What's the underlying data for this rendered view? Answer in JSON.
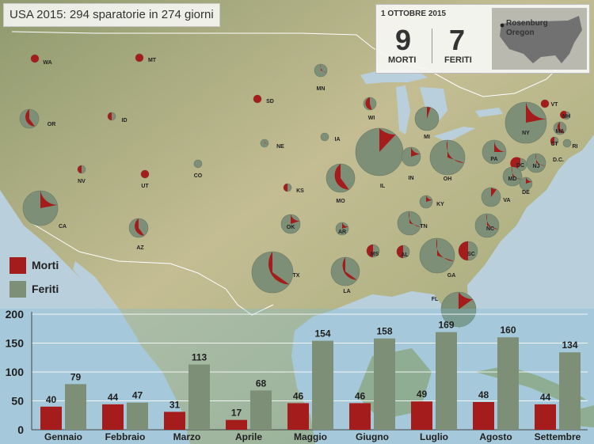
{
  "title": "USA 2015: 294 sparatorie in 274 giorni",
  "colors": {
    "morti": "#a51c1c",
    "feriti": "#7d8f76",
    "grid": "#ffffff",
    "sea": "#b9cfdc"
  },
  "info_box": {
    "date": "1 OTTOBRE 2015",
    "morti_value": "9",
    "morti_label": "MORTI",
    "feriti_value": "7",
    "feriti_label": "FERITI",
    "location_line1": "Rosenburg",
    "location_line2": "Oregon"
  },
  "legend": [
    {
      "label": "Morti",
      "color": "#a51c1c"
    },
    {
      "label": "Feriti",
      "color": "#7d8f76"
    }
  ],
  "map_states": [
    {
      "label": "WA",
      "size": 1,
      "dead_share": 1.0
    },
    {
      "label": "MT",
      "size": 1,
      "dead_share": 1.0
    },
    {
      "label": "OR",
      "size": 3,
      "dead_share": 0.4
    },
    {
      "label": "ID",
      "size": 1,
      "dead_share": 0.5
    },
    {
      "label": "SD",
      "size": 1,
      "dead_share": 1.0
    },
    {
      "label": "MN",
      "size": 2,
      "dead_share": 0.3
    },
    {
      "label": "WI",
      "size": 2,
      "dead_share": 0.45
    },
    {
      "label": "NV",
      "size": 1,
      "dead_share": 0.5
    },
    {
      "label": "UT",
      "size": 1,
      "dead_share": 1.0
    },
    {
      "label": "CO",
      "size": 1,
      "dead_share": 0.0
    },
    {
      "label": "NE",
      "size": 1,
      "dead_share": 0.3
    },
    {
      "label": "IA",
      "size": 1,
      "dead_share": 0.0
    },
    {
      "label": "CA",
      "size": 6,
      "dead_share": 0.22
    },
    {
      "label": "KS",
      "size": 1,
      "dead_share": 0.5
    },
    {
      "label": "MO",
      "size": 5,
      "dead_share": 0.4
    },
    {
      "label": "IL",
      "size": 8,
      "dead_share": 0.12
    },
    {
      "label": "IN",
      "size": 3,
      "dead_share": 0.2
    },
    {
      "label": "OH",
      "size": 6,
      "dead_share": 0.3
    },
    {
      "label": "MI",
      "size": 4,
      "dead_share": 0.05
    },
    {
      "label": "NY",
      "size": 7,
      "dead_share": 0.22
    },
    {
      "label": "PA",
      "size": 4,
      "dead_share": 0.25
    },
    {
      "label": "VT",
      "size": 1,
      "dead_share": 1.0
    },
    {
      "label": "NH",
      "size": 1,
      "dead_share": 0.6
    },
    {
      "label": "MA",
      "size": 2,
      "dead_share": 0.4
    },
    {
      "label": "CT",
      "size": 1,
      "dead_share": 0.5
    },
    {
      "label": "RI",
      "size": 1,
      "dead_share": 0.0
    },
    {
      "label": "NJ",
      "size": 3,
      "dead_share": 0.3
    },
    {
      "label": "DC",
      "size": 2,
      "dead_share": 0.6
    },
    {
      "label": "MD",
      "size": 3,
      "dead_share": 0.3
    },
    {
      "label": "DE",
      "size": 2,
      "dead_share": 0.2
    },
    {
      "label": "D.C.",
      "size": 0,
      "dead_share": 0.0
    },
    {
      "label": "VA",
      "size": 3,
      "dead_share": 0.1
    },
    {
      "label": "KY",
      "size": 2,
      "dead_share": 0.2
    },
    {
      "label": "OK",
      "size": 3,
      "dead_share": 0.2
    },
    {
      "label": "AR",
      "size": 2,
      "dead_share": 0.2
    },
    {
      "label": "TN",
      "size": 4,
      "dead_share": 0.3
    },
    {
      "label": "NC",
      "size": 4,
      "dead_share": 0.3
    },
    {
      "label": "SC",
      "size": 3,
      "dead_share": 0.5
    },
    {
      "label": "AZ",
      "size": 3,
      "dead_share": 0.4
    },
    {
      "label": "TX",
      "size": 7,
      "dead_share": 0.35
    },
    {
      "label": "LA",
      "size": 5,
      "dead_share": 0.35
    },
    {
      "label": "MS",
      "size": 2,
      "dead_share": 0.5
    },
    {
      "label": "AL",
      "size": 2,
      "dead_share": 0.5
    },
    {
      "label": "GA",
      "size": 6,
      "dead_share": 0.3
    },
    {
      "label": "FL",
      "size": 6,
      "dead_share": 0.15
    }
  ],
  "chart_data": {
    "type": "bar",
    "categories": [
      "Gennaio",
      "Febbraio",
      "Marzo",
      "Aprile",
      "Maggio",
      "Giugno",
      "Luglio",
      "Agosto",
      "Settembre"
    ],
    "series": [
      {
        "name": "Morti",
        "values": [
          40,
          44,
          31,
          17,
          46,
          46,
          49,
          48,
          44
        ]
      },
      {
        "name": "Feriti",
        "values": [
          79,
          47,
          113,
          68,
          154,
          158,
          169,
          160,
          134
        ]
      }
    ],
    "y_ticks": [
      "0",
      "50",
      "100",
      "150",
      "200"
    ],
    "ylim": [
      0,
      200
    ],
    "grid": true,
    "data_labels": true
  }
}
